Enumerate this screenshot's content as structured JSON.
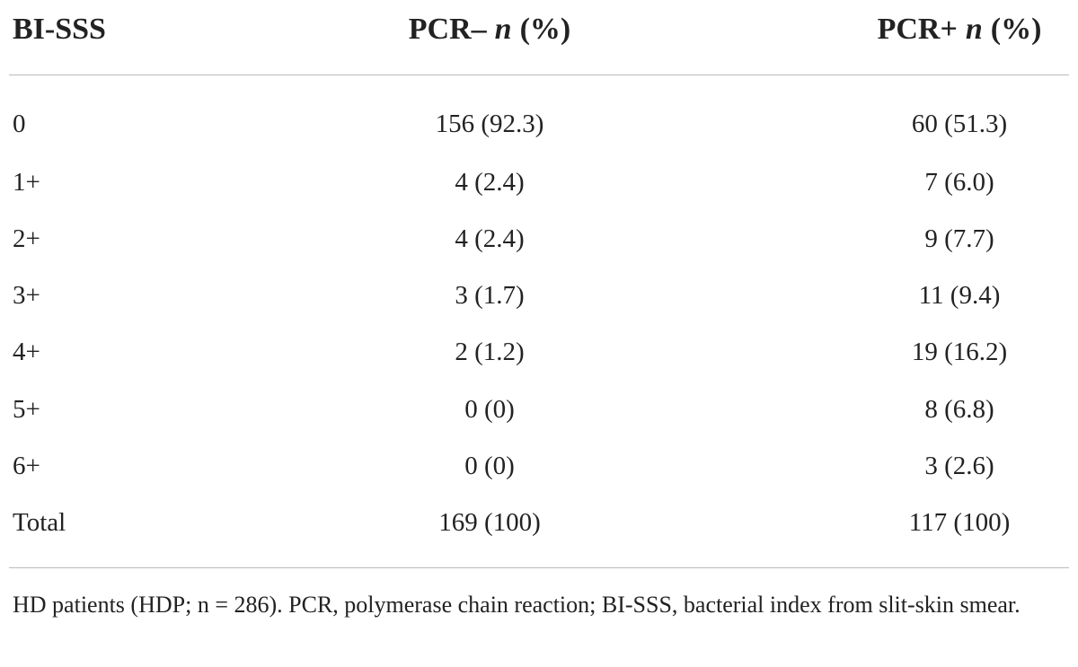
{
  "table": {
    "header": [
      [
        "BI-SSS"
      ],
      [
        "PCR–",
        "n",
        "(%)"
      ],
      [
        "PCR+",
        "n",
        "(%)"
      ]
    ],
    "rows": [
      [
        "0",
        "156 (92.3)",
        "60 (51.3)"
      ],
      [
        "1+",
        "4 (2.4)",
        "7 (6.0)"
      ],
      [
        "2+",
        "4 (2.4)",
        "9 (7.7)"
      ],
      [
        "3+",
        "3 (1.7)",
        "11 (9.4)"
      ],
      [
        "4+",
        "2 (1.2)",
        "19 (16.2)"
      ],
      [
        "5+",
        "0 (0)",
        "8 (6.8)"
      ],
      [
        "6+",
        "0 (0)",
        "3 (2.6)"
      ],
      [
        "Total",
        "169 (100)",
        "117 (100)"
      ]
    ],
    "footnote": "HD patients (HDP; n = 286). PCR, polymerase chain reaction; BI-SSS, bacterial index from slit-skin smear."
  }
}
